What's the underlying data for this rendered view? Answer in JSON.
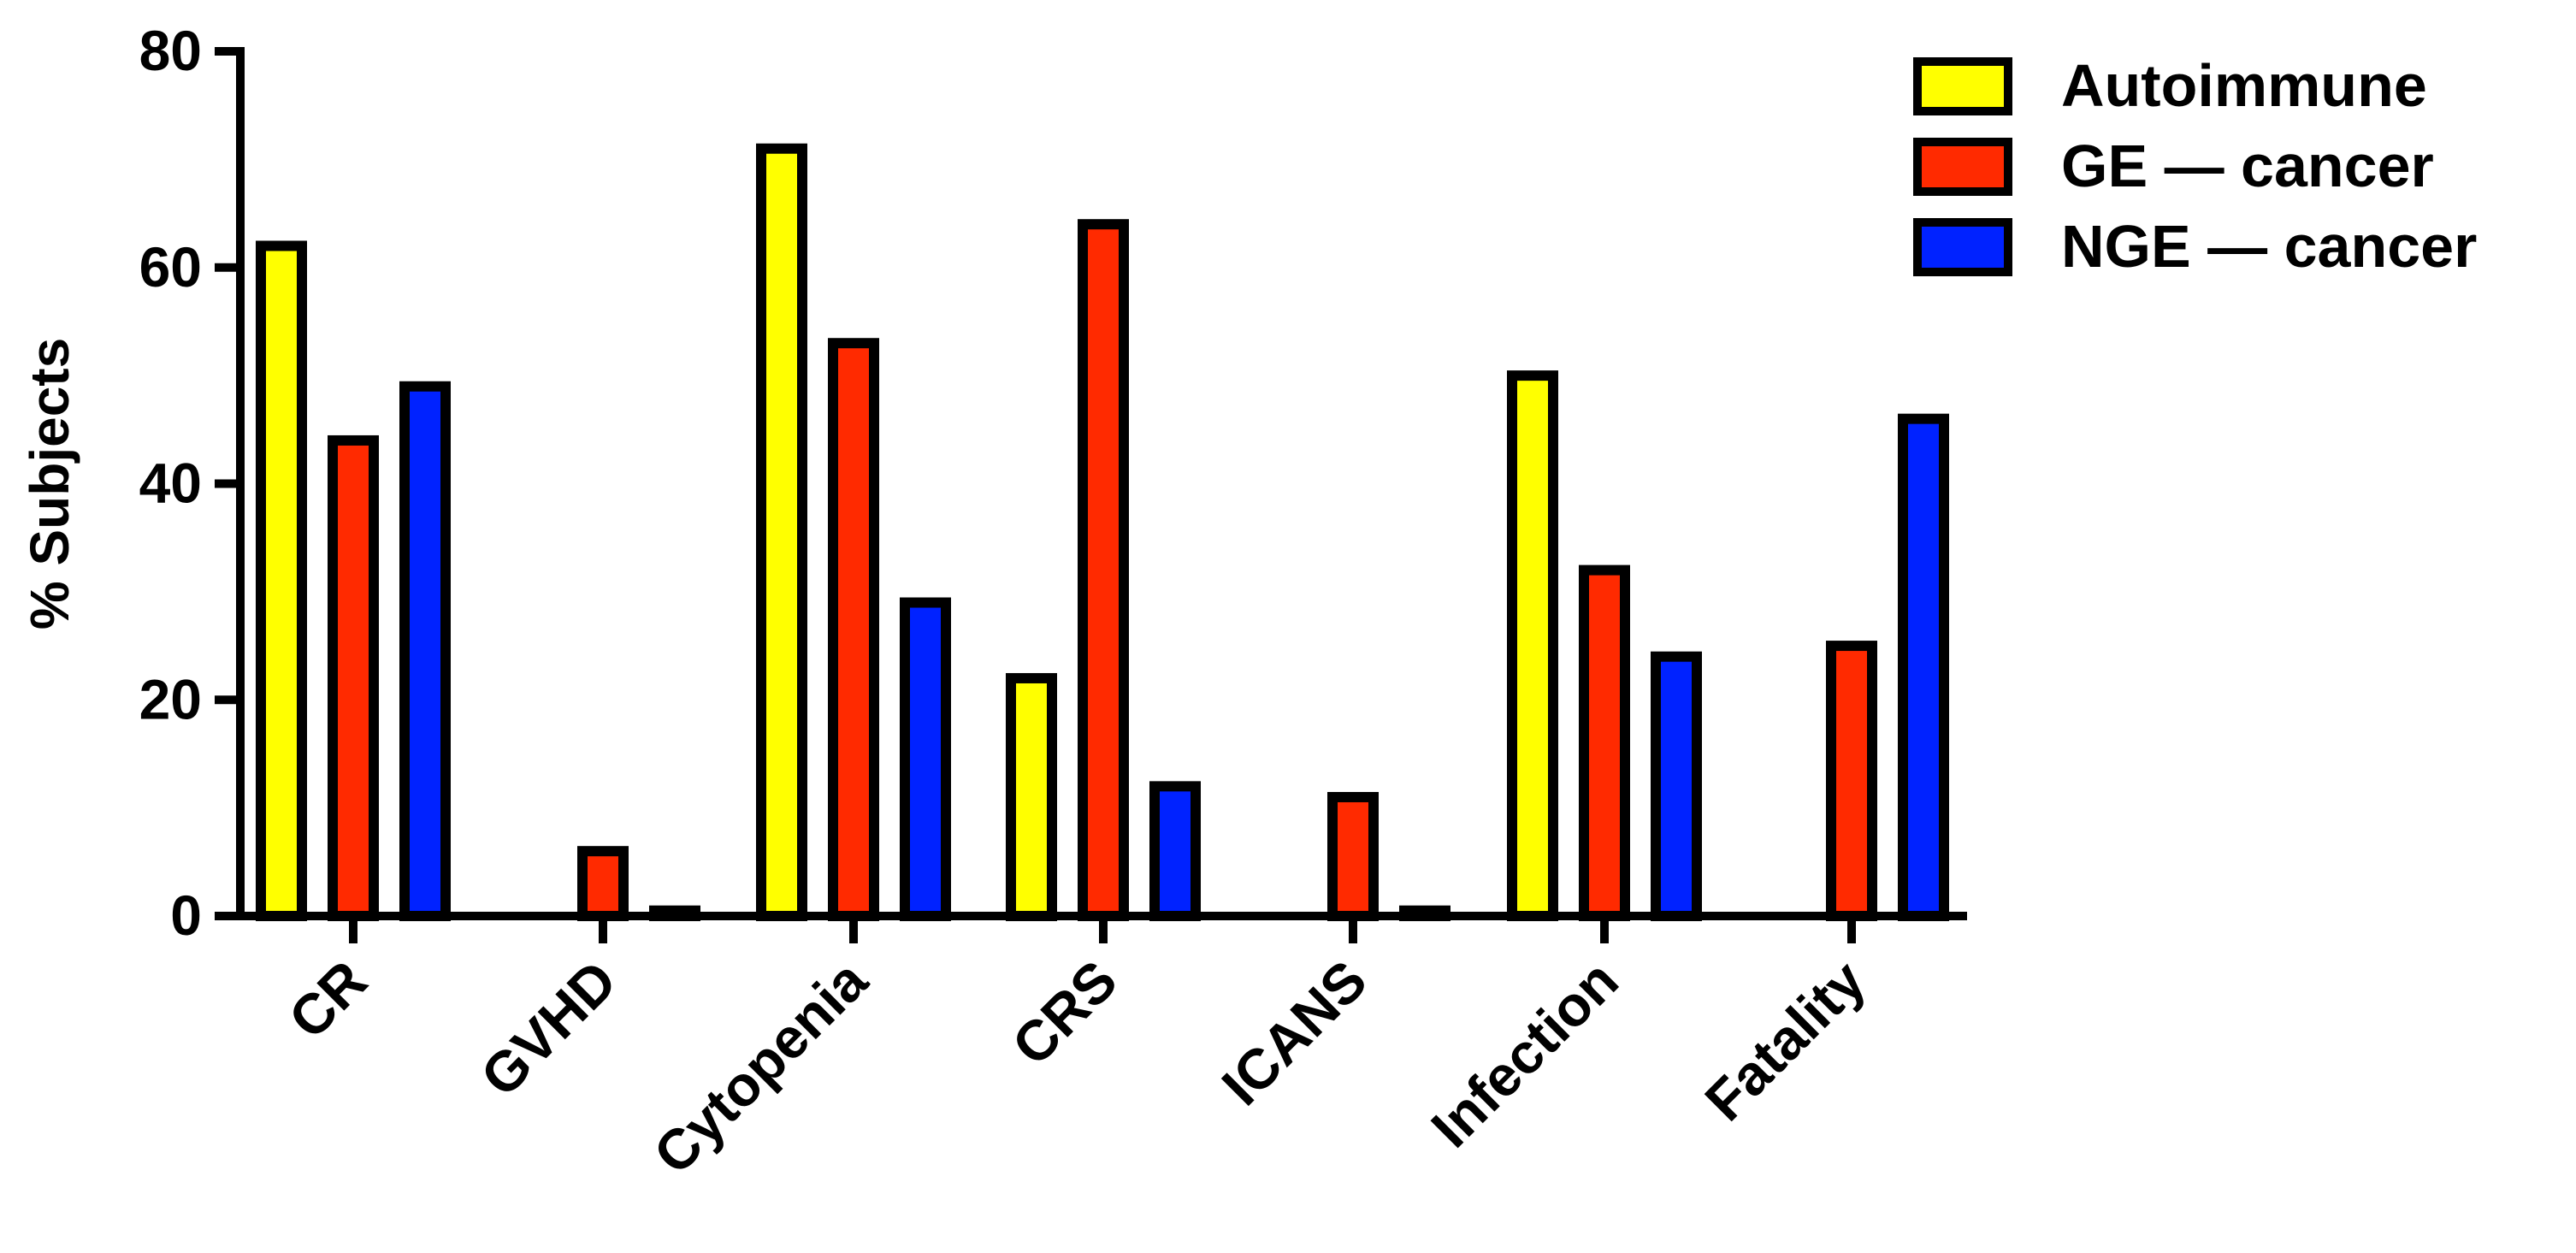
{
  "chart_data": {
    "type": "bar",
    "title": "",
    "xlabel": "",
    "ylabel": "% Subjects",
    "ylim": [
      0,
      80
    ],
    "yticks": [
      0,
      20,
      40,
      60,
      80
    ],
    "grid": false,
    "legend_position": "top-right",
    "categories": [
      "CR",
      "GVHD",
      "Cytopenia",
      "CRS",
      "ICANS",
      "Infection",
      "Fatality"
    ],
    "series": [
      {
        "name": "Autoimmune",
        "color": "#ffff00",
        "values": [
          62,
          0,
          71,
          22,
          0,
          50,
          0
        ]
      },
      {
        "name": "GE — cancer",
        "color": "#ff2a00",
        "values": [
          44,
          6,
          53,
          64,
          11,
          32,
          25
        ]
      },
      {
        "name": "NGE — cancer",
        "color": "#0022ff",
        "values": [
          49,
          0.5,
          29,
          12,
          0.5,
          24,
          46
        ]
      }
    ]
  }
}
